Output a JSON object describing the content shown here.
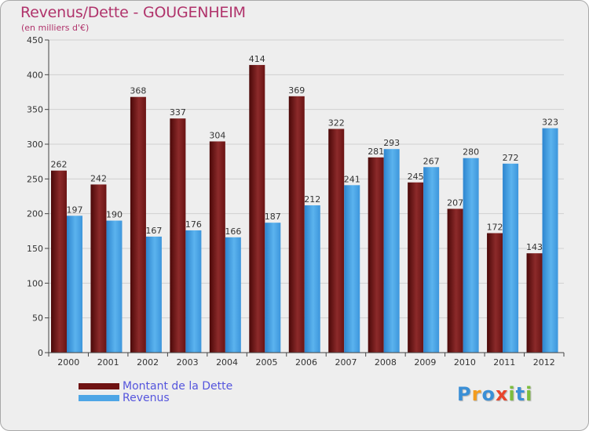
{
  "chart_data": {
    "type": "bar",
    "title": "Revenus/Dette - GOUGENHEIM",
    "subtitle": "(en milliers d'€)",
    "xlabel": "",
    "ylabel": "",
    "ylim": [
      0,
      450
    ],
    "yticks": [
      0,
      50,
      100,
      150,
      200,
      250,
      300,
      350,
      400,
      450
    ],
    "grid": true,
    "legend_position": "bottom-left",
    "categories": [
      "2000",
      "2001",
      "2002",
      "2003",
      "2004",
      "2005",
      "2006",
      "2007",
      "2008",
      "2009",
      "2010",
      "2011",
      "2012"
    ],
    "series": [
      {
        "name": "Montant de la Dette",
        "color": "#7a1a1a",
        "values": [
          262,
          242,
          368,
          337,
          304,
          414,
          369,
          322,
          281,
          245,
          207,
          172,
          143
        ]
      },
      {
        "name": "Revenus",
        "color": "#4ea6e6",
        "values": [
          197,
          190,
          167,
          176,
          166,
          187,
          212,
          241,
          293,
          267,
          280,
          272,
          323
        ]
      }
    ]
  },
  "logo": {
    "letters": [
      "P",
      "r",
      "o",
      "x",
      "i",
      "t",
      "i"
    ],
    "colors": [
      "#3a8fd6",
      "#f39c1e",
      "#3a8fd6",
      "#e8452c",
      "#7cbd3c",
      "#3a8fd6",
      "#7cbd3c"
    ]
  }
}
